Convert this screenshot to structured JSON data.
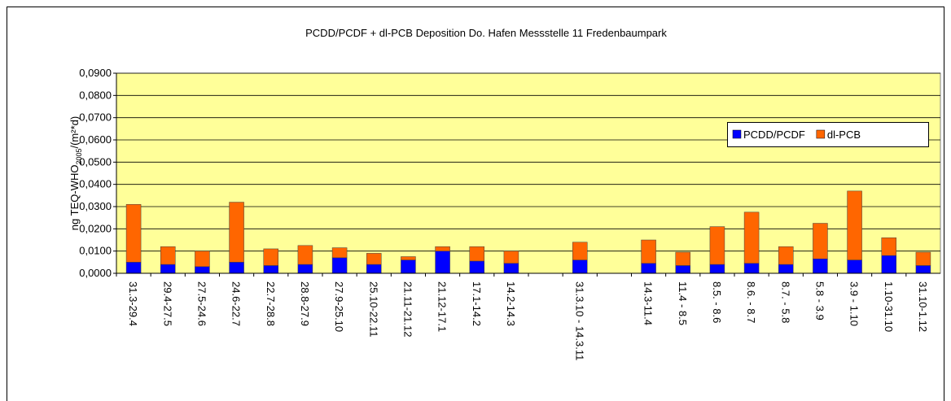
{
  "chart_data": {
    "type": "stacked_bar",
    "title": "PCDD/PCDF + dl-PCB  Deposition Do. Hafen Messstelle 11  Fredenbaumpark",
    "ylabel": {
      "main": "ng TEQ-WHO",
      "sub": "2005",
      "rest": "/(m²*d)"
    },
    "categories": [
      "31.3-29.4",
      "29.4-27.5",
      "27.5-24.6",
      "24.6-22.7",
      "22.7-28.8",
      "28.8-27.9",
      "27.9-25.10",
      "25.10-22.11",
      "21.11-21.12",
      "21.12-17.1",
      "17.1-14.2",
      "14.2-14.3",
      null,
      "31.3.10 - 14.3.11",
      null,
      "14.3-11.4",
      "11.4 - 8.5",
      "8.5. - 8.6",
      "8.6. - 8.7",
      "8.7. - 5.8",
      "5.8 - 3.9",
      "3.9 - 1.10",
      "1.10-31.10",
      "31.10-1.12"
    ],
    "series": [
      {
        "name": "PCDD/PCDF",
        "color": "#0000ff",
        "values": [
          0.005,
          0.004,
          0.003,
          0.005,
          0.0035,
          0.004,
          0.007,
          0.004,
          0.006,
          0.01,
          0.0055,
          0.0045,
          null,
          0.006,
          null,
          0.0045,
          0.0035,
          0.004,
          0.0045,
          0.004,
          0.0065,
          0.006,
          0.008,
          0.0035
        ]
      },
      {
        "name": "dl-PCB",
        "color": "#ff6600",
        "values": [
          0.026,
          0.008,
          0.007,
          0.027,
          0.0075,
          0.0085,
          0.0045,
          0.005,
          0.0015,
          0.002,
          0.0065,
          0.0055,
          null,
          0.008,
          null,
          0.0105,
          0.006,
          0.017,
          0.023,
          0.008,
          0.016,
          0.031,
          0.008,
          0.006
        ]
      }
    ],
    "ylim": [
      0,
      0.09
    ],
    "yticks": [
      {
        "value": 0,
        "label": "0,0000"
      },
      {
        "value": 0.01,
        "label": "0,0100"
      },
      {
        "value": 0.02,
        "label": "0,0200"
      },
      {
        "value": 0.03,
        "label": "0,0300"
      },
      {
        "value": 0.04,
        "label": "0,0400"
      },
      {
        "value": 0.05,
        "label": "0,0500"
      },
      {
        "value": 0.06,
        "label": "0,0600"
      },
      {
        "value": 0.07,
        "label": "0,0700"
      },
      {
        "value": 0.08,
        "label": "0,0800"
      },
      {
        "value": 0.09,
        "label": "0,0900"
      }
    ],
    "grid": true,
    "plot_background": "#ffff99"
  }
}
